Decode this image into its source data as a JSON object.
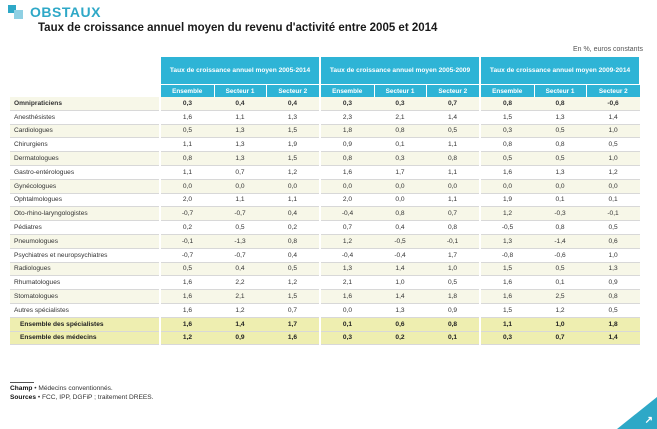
{
  "brand": {
    "name": "OBSTAUX"
  },
  "title": "Taux de croissance annuel moyen du revenu d'activité entre 2005 et 2014",
  "unit": "En %, euros constants",
  "columns": {
    "groups": [
      "Taux de croissance annuel moyen 2005-2014",
      "Taux de croissance annuel moyen 2005-2009",
      "Taux de croissance annuel moyen 2009-2014"
    ],
    "subs": [
      "Ensemble",
      "Secteur 1",
      "Secteur 2"
    ]
  },
  "rows": [
    {
      "label": "Omnipraticiens",
      "values": [
        "0,3",
        "0,4",
        "0,4",
        "0,3",
        "0,3",
        "0,7",
        "0,8",
        "0,8",
        "-0,6"
      ],
      "style": "first-hl"
    },
    {
      "label": "Anesthésistes",
      "values": [
        "1,6",
        "1,1",
        "1,3",
        "2,3",
        "2,1",
        "1,4",
        "1,5",
        "1,3",
        "1,4"
      ]
    },
    {
      "label": "Cardiologues",
      "values": [
        "0,5",
        "1,3",
        "1,5",
        "1,8",
        "0,8",
        "0,5",
        "0,3",
        "0,5",
        "1,0"
      ]
    },
    {
      "label": "Chirurgiens",
      "values": [
        "1,1",
        "1,3",
        "1,9",
        "0,9",
        "0,1",
        "1,1",
        "0,8",
        "0,8",
        "0,5"
      ]
    },
    {
      "label": "Dermatologues",
      "values": [
        "0,8",
        "1,3",
        "1,5",
        "0,8",
        "0,3",
        "0,8",
        "0,5",
        "0,5",
        "1,0"
      ]
    },
    {
      "label": "Gastro-entérologues",
      "values": [
        "1,1",
        "0,7",
        "1,2",
        "1,6",
        "1,7",
        "1,1",
        "1,6",
        "1,3",
        "1,2"
      ]
    },
    {
      "label": "Gynécologues",
      "values": [
        "0,0",
        "0,0",
        "0,0",
        "0,0",
        "0,0",
        "0,0",
        "0,0",
        "0,0",
        "0,0"
      ]
    },
    {
      "label": "Ophtalmologues",
      "values": [
        "2,0",
        "1,1",
        "1,1",
        "2,0",
        "0,0",
        "1,1",
        "1,9",
        "0,1",
        "0,1"
      ]
    },
    {
      "label": "Oto-rhino-laryngologistes",
      "values": [
        "-0,7",
        "-0,7",
        "0,4",
        "-0,4",
        "0,8",
        "0,7",
        "1,2",
        "-0,3",
        "-0,1"
      ]
    },
    {
      "label": "Pédiatres",
      "values": [
        "0,2",
        "0,5",
        "0,2",
        "0,7",
        "0,4",
        "0,8",
        "-0,5",
        "0,8",
        "0,5"
      ]
    },
    {
      "label": "Pneumologues",
      "values": [
        "-0,1",
        "-1,3",
        "0,8",
        "1,2",
        "-0,5",
        "-0,1",
        "1,3",
        "-1,4",
        "0,6"
      ]
    },
    {
      "label": "Psychiatres et neuropsychiatres",
      "values": [
        "-0,7",
        "-0,7",
        "0,4",
        "-0,4",
        "-0,4",
        "1,7",
        "-0,8",
        "-0,6",
        "1,0"
      ]
    },
    {
      "label": "Radiologues",
      "values": [
        "0,5",
        "0,4",
        "0,5",
        "1,3",
        "1,4",
        "1,0",
        "1,5",
        "0,5",
        "1,3"
      ]
    },
    {
      "label": "Rhumatologues",
      "values": [
        "1,6",
        "2,2",
        "1,2",
        "2,1",
        "1,0",
        "0,5",
        "1,6",
        "0,1",
        "0,9"
      ]
    },
    {
      "label": "Stomatologues",
      "values": [
        "1,6",
        "2,1",
        "1,5",
        "1,6",
        "1,4",
        "1,8",
        "1,6",
        "2,5",
        "0,8"
      ]
    },
    {
      "label": "Autres spécialistes",
      "values": [
        "1,6",
        "1,2",
        "0,7",
        "0,0",
        "1,3",
        "0,9",
        "1,5",
        "1,2",
        "0,5"
      ]
    },
    {
      "label": "Ensemble des spécialistes",
      "values": [
        "1,6",
        "1,4",
        "1,7",
        "0,1",
        "0,6",
        "0,8",
        "1,1",
        "1,0",
        "1,8"
      ],
      "style": "hl"
    },
    {
      "label": "Ensemble des médecins",
      "values": [
        "1,2",
        "0,9",
        "1,6",
        "0,3",
        "0,2",
        "0,1",
        "0,3",
        "0,7",
        "1,4"
      ],
      "style": "hl"
    }
  ],
  "footer": {
    "champ_label": "Champ",
    "champ_text": "• Médecins conventionnés.",
    "sources_label": "Sources",
    "sources_text": "• FCC, IPP, DGFiP ; traitement DREES."
  },
  "icons": {
    "brand": "brand-logo-icon",
    "corner": "page-corner-arrow-icon"
  },
  "colors": {
    "accent": "#2eb4d6",
    "highlight_row": "#eeeeb0",
    "stripe_row": "#f7f7e8"
  }
}
